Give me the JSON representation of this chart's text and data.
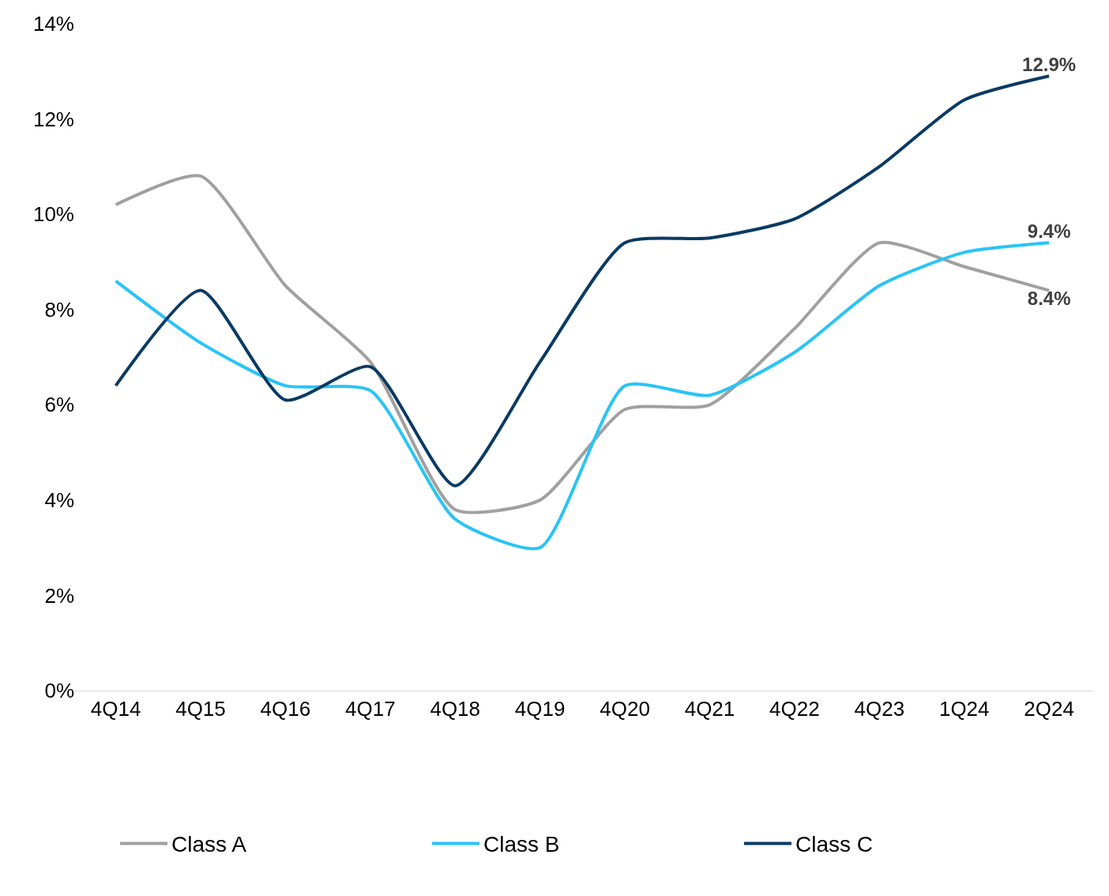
{
  "chart_data": {
    "type": "line",
    "categories": [
      "4Q14",
      "4Q15",
      "4Q16",
      "4Q17",
      "4Q18",
      "4Q19",
      "4Q20",
      "4Q21",
      "4Q22",
      "4Q23",
      "1Q24",
      "2Q24"
    ],
    "series": [
      {
        "name": "Class A",
        "color": "#a0a0a0",
        "values": [
          10.2,
          10.8,
          8.5,
          6.9,
          3.8,
          4.0,
          5.9,
          6.0,
          7.6,
          9.4,
          8.9,
          8.4
        ],
        "value_labels": [
          null,
          null,
          null,
          null,
          null,
          null,
          null,
          null,
          null,
          null,
          null,
          "8.4%"
        ]
      },
      {
        "name": "Class B",
        "color": "#29c4f6",
        "values": [
          8.6,
          7.3,
          6.4,
          6.3,
          3.6,
          3.0,
          6.4,
          6.2,
          7.1,
          8.5,
          9.2,
          9.4
        ],
        "value_labels": [
          null,
          null,
          null,
          null,
          null,
          null,
          null,
          null,
          null,
          null,
          null,
          "9.4%"
        ]
      },
      {
        "name": "Class C",
        "color": "#0a3a63",
        "values": [
          6.4,
          8.4,
          6.1,
          6.8,
          4.3,
          6.9,
          9.4,
          9.5,
          9.9,
          11.0,
          12.4,
          12.9
        ],
        "value_labels": [
          null,
          null,
          null,
          null,
          null,
          null,
          null,
          null,
          null,
          null,
          null,
          "12.9%"
        ]
      }
    ],
    "ylim": [
      0,
      14
    ],
    "yticks": [
      {
        "value": 0,
        "label": "0%"
      },
      {
        "value": 2,
        "label": "2%"
      },
      {
        "value": 4,
        "label": "4%"
      },
      {
        "value": 6,
        "label": "6%"
      },
      {
        "value": 8,
        "label": "8%"
      },
      {
        "value": 10,
        "label": "10%"
      },
      {
        "value": 12,
        "label": "12%"
      },
      {
        "value": 14,
        "label": "14%"
      }
    ],
    "legend": "bottom",
    "marker": "none",
    "line_style": "solid"
  }
}
